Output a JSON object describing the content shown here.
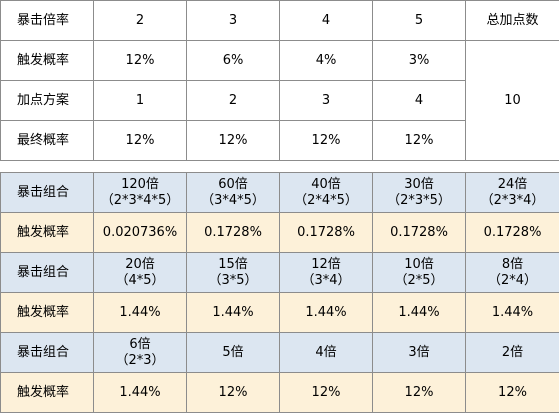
{
  "top_table": {
    "rows": [
      [
        "暴击倍率",
        "2",
        "3",
        "4",
        "5",
        "总加点数"
      ],
      [
        "触发概率",
        "12%",
        "6%",
        "4%",
        "3%"
      ],
      [
        "加点方案",
        "1",
        "2",
        "3",
        "4"
      ],
      [
        "最终概率",
        "12%",
        "12%",
        "12%",
        "12%"
      ]
    ],
    "total": "10"
  },
  "bottom_table": {
    "rows": [
      {
        "label": "暴击组合",
        "cells": [
          [
            "120倍",
            "（2*3*4*5）"
          ],
          [
            "60倍",
            "（3*4*5）"
          ],
          [
            "40倍",
            "（2*4*5）"
          ],
          [
            "30倍",
            "（2*3*5）"
          ],
          [
            "24倍",
            "（2*3*4）"
          ]
        ]
      },
      {
        "label": "触发概率",
        "cells": [
          [
            "0.020736%"
          ],
          [
            "0.1728%"
          ],
          [
            "0.1728%"
          ],
          [
            "0.1728%"
          ],
          [
            "0.1728%"
          ]
        ]
      },
      {
        "label": "暴击组合",
        "cells": [
          [
            "20倍",
            "（4*5）"
          ],
          [
            "15倍",
            "（3*5）"
          ],
          [
            "12倍",
            "（3*4）"
          ],
          [
            "10倍",
            "（2*5）"
          ],
          [
            "8倍",
            "（2*4）"
          ]
        ]
      },
      {
        "label": "触发概率",
        "cells": [
          [
            "1.44%"
          ],
          [
            "1.44%"
          ],
          [
            "1.44%"
          ],
          [
            "1.44%"
          ],
          [
            "1.44%"
          ]
        ]
      },
      {
        "label": "暴击组合",
        "cells": [
          [
            "6倍",
            "（2*3）"
          ],
          [
            "5倍"
          ],
          [
            "4倍"
          ],
          [
            "3倍"
          ],
          [
            "2倍"
          ]
        ]
      },
      {
        "label": "触发概率",
        "cells": [
          [
            "1.44%"
          ],
          [
            "12%"
          ],
          [
            "12%"
          ],
          [
            "12%"
          ],
          [
            "12%"
          ]
        ]
      }
    ]
  }
}
